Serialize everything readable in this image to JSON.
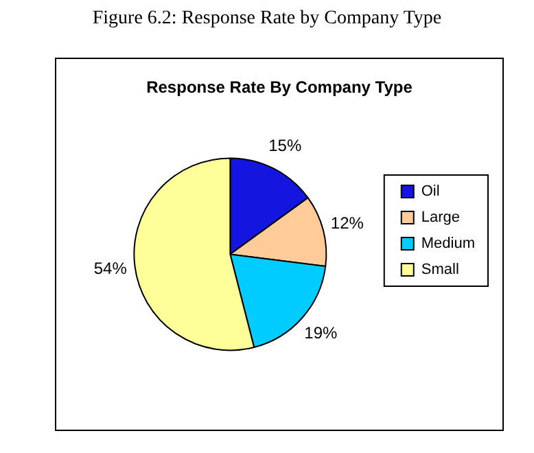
{
  "chart_data": {
    "type": "pie",
    "title": "Figure 6.2: Response Rate by Company Type",
    "subtitle": "Response Rate By Company Type",
    "categories": [
      "Oil",
      "Large",
      "Medium",
      "Small"
    ],
    "values": [
      15,
      12,
      19,
      54
    ],
    "colors": [
      "#1515e0",
      "#ffcc99",
      "#00ccff",
      "#ffff99"
    ],
    "value_labels": [
      "15%",
      "12%",
      "19%",
      "54%"
    ],
    "legend": "right"
  }
}
